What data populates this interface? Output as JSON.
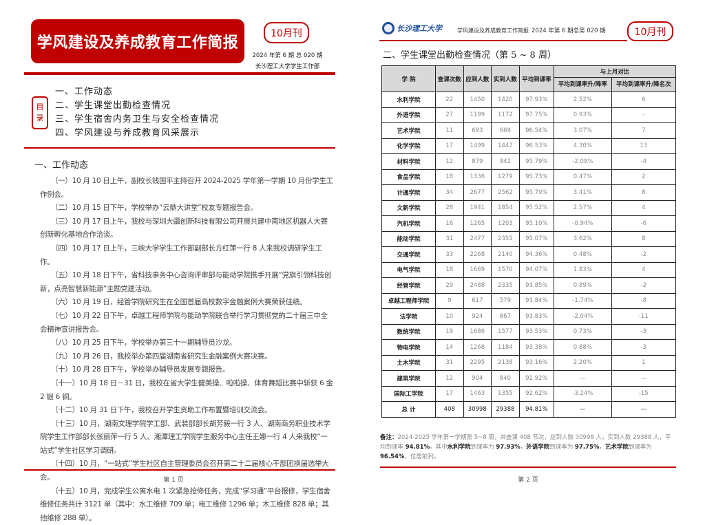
{
  "page1": {
    "banner_title": "学风建设及养成教育工作简报",
    "month_badge": "10月刊",
    "issue": "2024 年第 6 期 总 020 期",
    "publisher": "长沙理工大学学生工作部",
    "toc_label": [
      "目",
      "录"
    ],
    "toc": [
      "一、工作动态",
      "二、学生课堂出勤检查情况",
      "三、学生宿舍内务卫生与安全检查情况",
      "四、学风建设与养成教育风采展示"
    ],
    "section_title": "一、工作动态",
    "paragraphs": [
      "（一）10 月 10 日上午，副校长钱国平主持召开 2024-2025 学年第一学期 10 月份学生工作例会。",
      "（二）10 月 15 日下午，学校举办“云鼎大讲堂”校友专题报告会。",
      "（三）10 月 17 日上午，我校与深圳大疆创新科技有限公司开展共建中南地区机器人大赛创新孵化基地合作洽谈。",
      "（四）10 月 17 日上午，三峡大学学生工作部副部长方红萍一行 8 人来我校调研学生工作。",
      "（五）10 月 18 日下午，省科技事务中心咨询评审部与能动学院携手开展“党旗引领科技创新，点亮智慧新能源”主题党建活动。",
      "（六）10 月 19 日，经管学院研究生在全国首届高校数字金融案例大赛荣获佳绩。",
      "（七）10 月 22 日下午，卓越工程师学院与能动学院联合举行学习贯彻党的二十届三中全会精神宣讲报告会。",
      "（八）10 月 25 日下午，学校举办第三十一期辅导员沙龙。",
      "（九）10 月 26 日，我校举办第四届湖南省研究生金融案例大赛决赛。",
      "（十）10 月 28 日下午，学校举办辅导员发展专题报告。",
      "（十一）10 月 18 日－31 日，我校在省大学生健美操、啦啦操、体育舞蹈比赛中斩获 6 金 2 银 6 铜。",
      "（十二）10 月 31 日下午，我校召开学生资助工作布置暨培训交流会。",
      "（十三）10 月，湖南文理学院学工部、武装部部长胡芳毅一行 3 人、湖南商务职业技术学院学生工作部部长张丽萍一行 5 人、湘潭理工学院学生服务中心主任王娜一行 4 人来我校“一站式”学生社区学习调研。",
      "（十四）10 月，“一站式”学生社区自主管理委员会召开第二十二届核心干部团换届选举大会。",
      "（十五）10 月，完成学生公寓水电 1 次紧急抢修任务，完成“学习通”平台报修，学生宿舍维修任务共计 3121 单（其中：水工维修 709 单；电工维修 1296 单；木工维修 828 单；其他维修 288 单）。"
    ],
    "page_number": "第 1 页"
  },
  "page2": {
    "logo_text": "长沙理工大学",
    "header_title": "学风建设及养成教育工作简报",
    "issue": "2024 年第 6 期总第 020 期",
    "month_badge": "10月刊",
    "section_title": "二、学生课堂出勤检查情况（第 5 ~ 8 周）",
    "table": {
      "headers": [
        "学 院",
        "查课次数",
        "应到人数",
        "实到人数",
        "平均到课率"
      ],
      "compare_header": "与上月对比",
      "compare_subheaders": [
        "平均到课率升/降率",
        "平均到课率升/降名次"
      ],
      "rows": [
        [
          "水利学院",
          "22",
          "1450",
          "1420",
          "97.93%",
          "2.52%",
          "6"
        ],
        [
          "外语学院",
          "27",
          "1199",
          "1172",
          "97.75%",
          "0.93%",
          "-"
        ],
        [
          "艺术学院",
          "11",
          "693",
          "669",
          "96.54%",
          "3.07%",
          "7"
        ],
        [
          "化学学院",
          "17",
          "1499",
          "1447",
          "96.53%",
          "4.30%",
          "13"
        ],
        [
          "材料学院",
          "12",
          "879",
          "842",
          "95.79%",
          "-2.09%",
          "-4"
        ],
        [
          "食品学院",
          "18",
          "1336",
          "1279",
          "95.73%",
          "0.47%",
          "2"
        ],
        [
          "计通学院",
          "34",
          "2677",
          "2562",
          "95.70%",
          "3.41%",
          "8"
        ],
        [
          "文新学院",
          "28",
          "1941",
          "1854",
          "95.52%",
          "2.57%",
          "4"
        ],
        [
          "汽机学院",
          "16",
          "1265",
          "1203",
          "95.10%",
          "-0.94%",
          "-6"
        ],
        [
          "能动学院",
          "31",
          "2477",
          "2355",
          "95.07%",
          "3.62%",
          "8"
        ],
        [
          "交通学院",
          "33",
          "2268",
          "2140",
          "94.36%",
          "0.48%",
          "-2"
        ],
        [
          "电气学院",
          "18",
          "1669",
          "1570",
          "94.07%",
          "1.83%",
          "4"
        ],
        [
          "经管学院",
          "29",
          "2488",
          "2335",
          "93.85%",
          "0.89%",
          "-2"
        ],
        [
          "卓越工程师学院",
          "9",
          "617",
          "579",
          "93.84%",
          "-1.74%",
          "-8"
        ],
        [
          "法学院",
          "10",
          "924",
          "867",
          "93.83%",
          "-2.04%",
          "-11"
        ],
        [
          "数统学院",
          "19",
          "1686",
          "1577",
          "93.53%",
          "0.73%",
          "-3"
        ],
        [
          "物电学院",
          "14",
          "1268",
          "1184",
          "93.38%",
          "0.88%",
          "-3"
        ],
        [
          "土木学院",
          "31",
          "2295",
          "2138",
          "93.16%",
          "2.20%",
          "1"
        ],
        [
          "建筑学院",
          "12",
          "904",
          "840",
          "92.92%",
          "—",
          "—"
        ],
        [
          "国际工学院",
          "17",
          "1463",
          "1355",
          "92.62%",
          "-3.24%",
          "-15"
        ]
      ],
      "total": [
        "总 计",
        "408",
        "30998",
        "29388",
        "94.81%",
        "—",
        "—"
      ]
    },
    "note": {
      "label": "备注：",
      "text1": "2024-2025 学年第一学期第 5~8 周，共查课 408 节次，应到人数 30998 人，实到人数 29388 人，平均到课率 ",
      "avg": "94.81%",
      "text2": "。其中",
      "c1": "水利学院",
      "t_rate": "到课率为 ",
      "r1": "97.93%",
      "c2": "外语学院",
      "r2": "97.75%",
      "c3": "艺术学院",
      "r3": "96.54%",
      "tail": "，位居前列。"
    },
    "page_number": "第 2 页"
  },
  "colors": {
    "accent": "#c00000",
    "logo_blue": "#1f4e9a",
    "header_gray": "#d9d9d9"
  }
}
